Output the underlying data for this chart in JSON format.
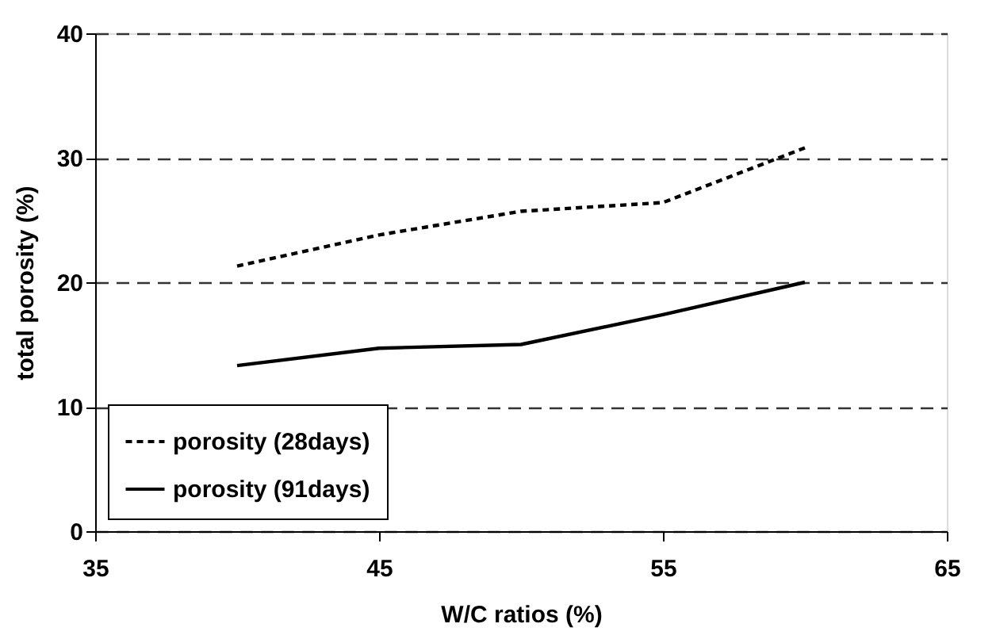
{
  "chart_data": {
    "type": "line",
    "xlabel": "W/C ratios (%)",
    "ylabel": "total porosity (%)",
    "xlim": [
      35,
      65
    ],
    "xticks": [
      35,
      45,
      55,
      65
    ],
    "ylim": [
      0,
      40
    ],
    "yticks": [
      0,
      10,
      20,
      30,
      40
    ],
    "grid": "y",
    "legend": "bottom left",
    "marker": "none",
    "series": [
      {
        "name": "porosity (28days)",
        "color": "#000000",
        "line_style": "dotted",
        "x": [
          40,
          45,
          50,
          55,
          60
        ],
        "values": [
          21.3,
          23.8,
          25.7,
          26.4,
          30.8
        ]
      },
      {
        "name": "porosity (91days)",
        "color": "#000000",
        "line_style": "solid",
        "x": [
          40,
          45,
          50,
          55,
          60
        ],
        "values": [
          13.3,
          14.7,
          15.0,
          17.4,
          20.0
        ]
      }
    ]
  }
}
